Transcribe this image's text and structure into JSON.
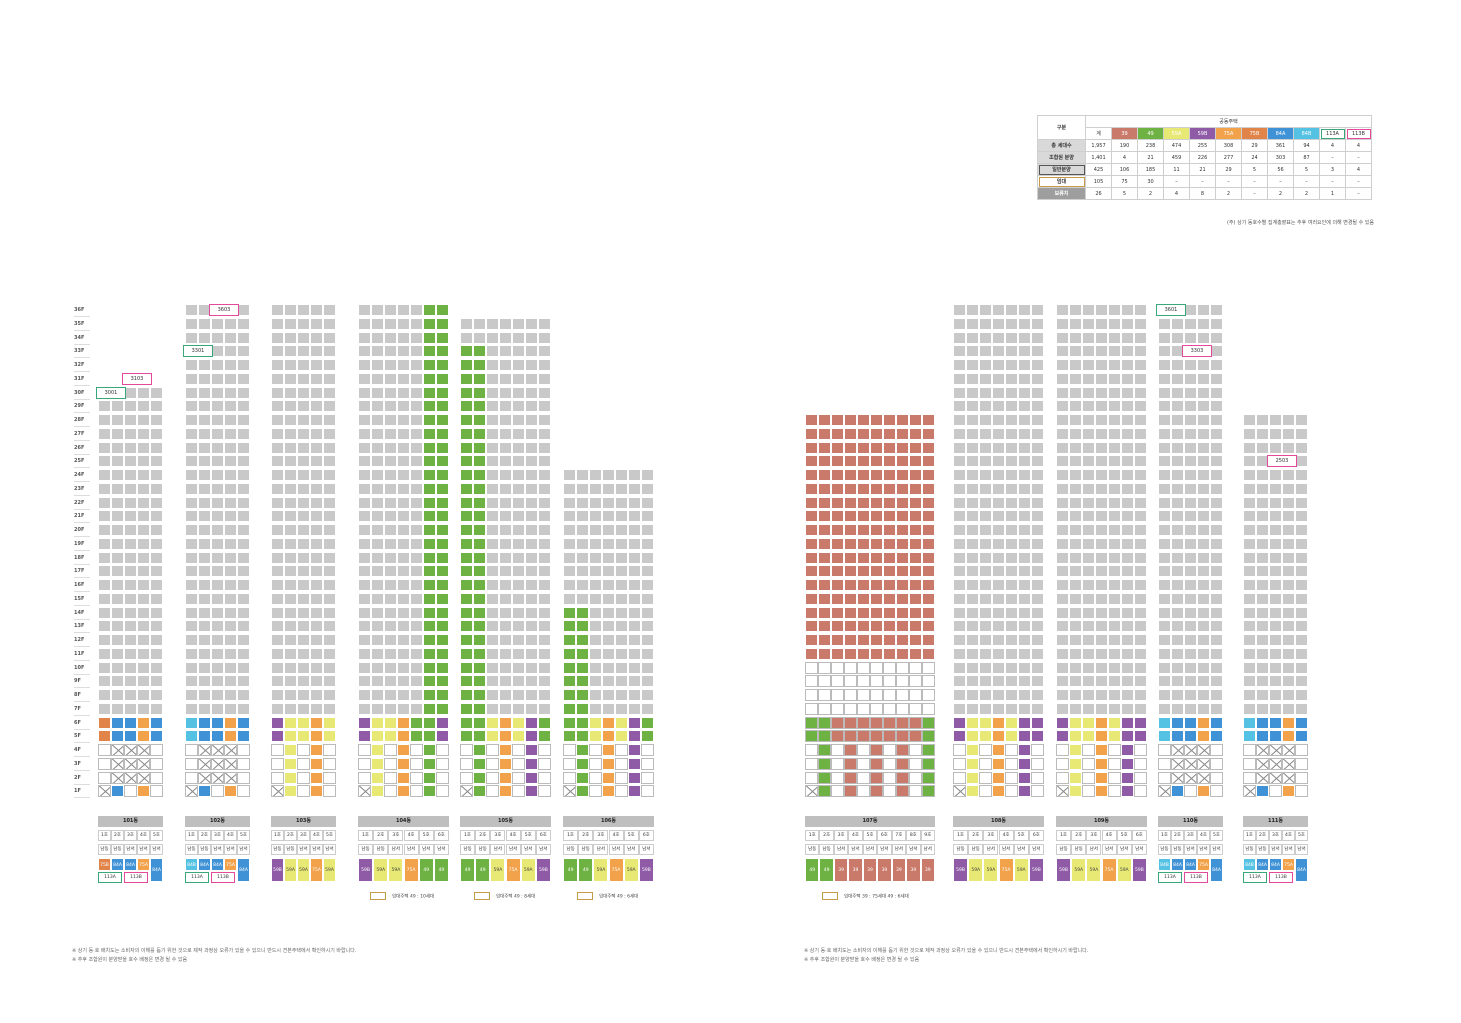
{
  "colors": {
    "39": "#c97a6a",
    "49": "#6fb244",
    "59A": "#e8e874",
    "59B": "#8f5aa6",
    "75A": "#f1a24a",
    "75B": "#e0844a",
    "84A": "#3f92d6",
    "84B": "#56c2e3",
    "113A": "#3aa77a",
    "113B": "#e34a9c",
    "grey": "#c9c9c9",
    "rental": "#c69c4b",
    "dark": "#9e9e9e"
  },
  "summary": {
    "group_label": "공동주택",
    "corner_label": "구분",
    "columns": [
      "계",
      "39",
      "49",
      "59A",
      "59B",
      "75A",
      "75B",
      "84A",
      "84B",
      "113A",
      "113B"
    ],
    "rows": [
      {
        "label": "총 세대수",
        "values": [
          "1,957",
          "190",
          "238",
          "474",
          "255",
          "308",
          "29",
          "361",
          "94",
          "4",
          "4"
        ]
      },
      {
        "label": "조합원 분양",
        "values": [
          "1,401",
          "4",
          "21",
          "459",
          "226",
          "277",
          "24",
          "303",
          "87",
          "–",
          "–"
        ]
      },
      {
        "label": "일반분양",
        "values": [
          "425",
          "106",
          "185",
          "11",
          "21",
          "29",
          "5",
          "56",
          "5",
          "3",
          "4"
        ]
      },
      {
        "label": "임대",
        "values": [
          "105",
          "75",
          "30",
          "–",
          "–",
          "–",
          "–",
          "–",
          "–",
          "–",
          "–"
        ]
      },
      {
        "label": "보류지",
        "values": [
          "26",
          "5",
          "2",
          "4",
          "8",
          "2",
          "–",
          "2",
          "2",
          "1",
          "–"
        ]
      }
    ],
    "footnote": "(주) 상기 동호수별 집계총괄표는 추후 여러요인에 의해 변경될 수 있음"
  },
  "floor_labels": [
    "36F",
    "35F",
    "34F",
    "33F",
    "32F",
    "31F",
    "30F",
    "29F",
    "28F",
    "27F",
    "26F",
    "25F",
    "24F",
    "23F",
    "22F",
    "21F",
    "20F",
    "19F",
    "18F",
    "17F",
    "16F",
    "15F",
    "14F",
    "13F",
    "12F",
    "11F",
    "10F",
    "9F",
    "8F",
    "7F",
    "6F",
    "5F",
    "4F",
    "3F",
    "2F",
    "1F"
  ],
  "buildings": [
    {
      "name": "101동",
      "x": 98,
      "units": 5,
      "top": 30,
      "lineh": [
        "1호",
        "2호",
        "3호",
        "4호",
        "5호"
      ],
      "dir": [
        "남동",
        "남동",
        "남서",
        "남서",
        "남서"
      ],
      "types": [
        "75B",
        "84A",
        "84A",
        "75A",
        "84A"
      ],
      "bottomTypes": [
        "113A",
        "113B"
      ],
      "special": [
        {
          "floor": 30,
          "col": 0,
          "text": "3001",
          "c": "113A"
        },
        {
          "floor": 31,
          "col": 2,
          "text": "3103",
          "c": "113B"
        }
      ]
    },
    {
      "name": "102동",
      "x": 185,
      "units": 5,
      "top": 36,
      "lineh": [
        "1호",
        "2호",
        "3호",
        "4호",
        "5호"
      ],
      "dir": [
        "남동",
        "남동",
        "남서",
        "남서",
        "남서"
      ],
      "types": [
        "84B",
        "84A",
        "84A",
        "75A",
        "84A"
      ],
      "bottomTypes": [
        "113A",
        "113B"
      ],
      "special": [
        {
          "floor": 33,
          "col": 0,
          "text": "3301",
          "c": "113A"
        },
        {
          "floor": 36,
          "col": 2,
          "text": "3603",
          "c": "113B"
        }
      ]
    },
    {
      "name": "103동",
      "x": 271,
      "units": 5,
      "top": 36,
      "lineh": [
        "1호",
        "2호",
        "3호",
        "4호",
        "5호"
      ],
      "dir": [
        "남동",
        "남동",
        "남서",
        "남서",
        "남서"
      ],
      "types": [
        "59B",
        "59A",
        "59A",
        "75A",
        "59A"
      ]
    },
    {
      "name": "104동",
      "x": 358,
      "units": 7,
      "top": 36,
      "lineh": [
        "1호",
        "2호",
        "3호",
        "4호",
        "5호",
        "6호"
      ],
      "dir": [
        "남동",
        "남동",
        "남서",
        "남서",
        "남서",
        "남서"
      ],
      "types": [
        "59B",
        "59A",
        "59A",
        "75A",
        "49",
        "49"
      ]
    },
    {
      "name": "105동",
      "x": 460,
      "units": 7,
      "top": 35,
      "lineh": [
        "1호",
        "2호",
        "3호",
        "4호",
        "5호",
        "6호"
      ],
      "dir": [
        "남동",
        "남동",
        "남서",
        "남서",
        "남서",
        "남서"
      ],
      "types": [
        "49",
        "49",
        "59A",
        "75A",
        "59A",
        "59B"
      ]
    },
    {
      "name": "106동",
      "x": 563,
      "units": 7,
      "top": 24,
      "lineh": [
        "1호",
        "2호",
        "3호",
        "4호",
        "5호",
        "6호"
      ],
      "dir": [
        "남동",
        "남동",
        "남서",
        "남서",
        "남서",
        "남서"
      ],
      "types": [
        "49",
        "49",
        "59A",
        "75A",
        "59A",
        "59B"
      ]
    },
    {
      "name": "107동",
      "x": 805,
      "units": 10,
      "top": 28,
      "lineh": [
        "1호",
        "2호",
        "3호",
        "4호",
        "5호",
        "6호",
        "7호",
        "8호",
        "9호"
      ],
      "dir": [
        "남동",
        "남동",
        "남서",
        "남서",
        "남서",
        "남서",
        "남서",
        "남서",
        "남서"
      ],
      "types": [
        "49",
        "49",
        "39",
        "39",
        "39",
        "39",
        "39",
        "39",
        "39"
      ]
    },
    {
      "name": "108동",
      "x": 953,
      "units": 7,
      "top": 36,
      "lineh": [
        "1호",
        "2호",
        "3호",
        "4호",
        "5호",
        "6호"
      ],
      "dir": [
        "남동",
        "남동",
        "남서",
        "남서",
        "남서",
        "남서"
      ],
      "types": [
        "59B",
        "59A",
        "59A",
        "75A",
        "59A",
        "59B"
      ]
    },
    {
      "name": "109동",
      "x": 1056,
      "units": 7,
      "top": 36,
      "lineh": [
        "1호",
        "2호",
        "3호",
        "4호",
        "5호",
        "6호"
      ],
      "dir": [
        "남동",
        "남동",
        "남서",
        "남서",
        "남서",
        "남서"
      ],
      "types": [
        "59B",
        "59A",
        "59A",
        "75A",
        "59A",
        "59B"
      ]
    },
    {
      "name": "110동",
      "x": 1158,
      "units": 5,
      "top": 36,
      "lineh": [
        "1호",
        "2호",
        "3호",
        "4호",
        "5호"
      ],
      "dir": [
        "남동",
        "남동",
        "남서",
        "남서",
        "남서"
      ],
      "types": [
        "84B",
        "84A",
        "84A",
        "75A",
        "84A"
      ],
      "bottomTypes": [
        "113A",
        "113B"
      ],
      "special": [
        {
          "floor": 36,
          "col": 0,
          "text": "3601",
          "c": "113A"
        },
        {
          "floor": 33,
          "col": 2,
          "text": "3303",
          "c": "113B"
        }
      ]
    },
    {
      "name": "111동",
      "x": 1243,
      "units": 5,
      "top": 28,
      "lineh": [
        "1호",
        "2호",
        "3호",
        "4호",
        "5호"
      ],
      "dir": [
        "남동",
        "남동",
        "남서",
        "남서",
        "남서"
      ],
      "types": [
        "84B",
        "84A",
        "84A",
        "75A",
        "84A"
      ],
      "bottomTypes": [
        "113A",
        "113B"
      ],
      "special": [
        {
          "floor": 25,
          "col": 2,
          "text": "2503",
          "c": "113B"
        }
      ]
    }
  ],
  "legends": [
    {
      "text": "임대주택  49 : 10세대",
      "x": 370
    },
    {
      "text": "임대주택  49 : 8세대",
      "x": 474
    },
    {
      "text": "임대주택  49 : 6세대",
      "x": 577
    },
    {
      "text": "임대주택  39 : 75세대       49 : 6세대",
      "x": 822
    }
  ],
  "notes_left": [
    "※ 상기 동·호 배치도는 소비자의 이해를 돕기 위한 것으로 제작 과정상 오류가 있을 수 있으니 반드시 견본주택에서 확인하시기 바랍니다.",
    "※ 추후 조합원이 분양받을 호수 배정은 변경 될 수 있음"
  ],
  "notes_right": [
    "※ 상기 동·호 배치도는 소비자의 이해를 돕기 위한 것으로 제작 과정상 오류가 있을 수 있으니 반드시 견본주택에서 확인하시기 바랍니다.",
    "※ 추후 조합원이 분양받을 호수 배정은 변경 될 수 있음"
  ]
}
